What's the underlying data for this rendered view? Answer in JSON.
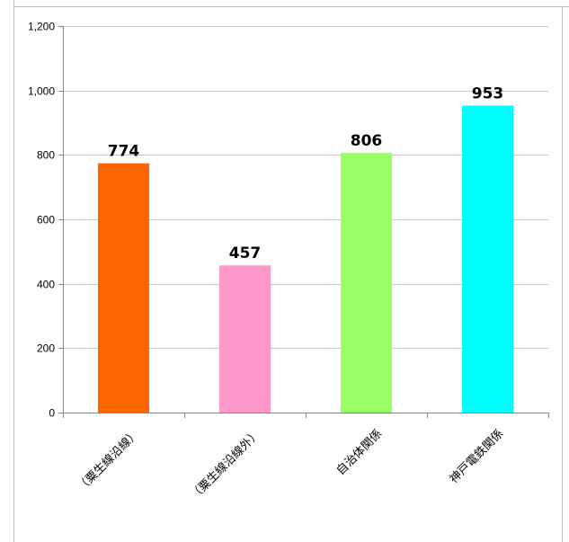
{
  "chart_data": {
    "type": "bar",
    "title": "",
    "xlabel": "",
    "ylabel": "",
    "categories": [
      "（粟生線沿線）",
      "（粟生線沿線外）",
      "自治体関係",
      "神戸電鉄関係"
    ],
    "values": [
      774,
      457,
      806,
      953
    ],
    "data_labels": [
      "774",
      "457",
      "806",
      "953"
    ],
    "bar_colors": [
      "#ff6600",
      "#ff99cc",
      "#99ff66",
      "#00ffff"
    ],
    "ylim": [
      0,
      1200
    ],
    "yticks": [
      0,
      200,
      400,
      600,
      800,
      1000,
      1200
    ],
    "ytick_labels": [
      "0",
      "200",
      "400",
      "600",
      "800",
      "1,000",
      "1,200"
    ],
    "grid": true,
    "legend": "none"
  }
}
